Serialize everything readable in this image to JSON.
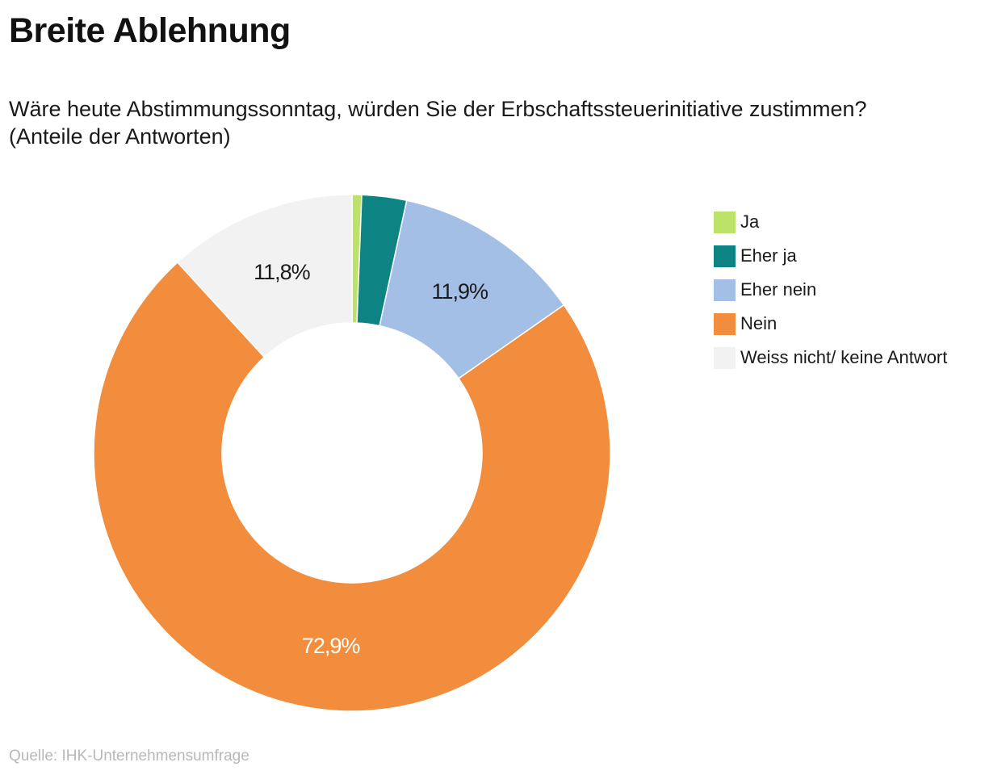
{
  "chart_data": {
    "type": "pie",
    "variant": "donut",
    "title": "Breite Ablehnung",
    "subtitle_lines": [
      "Wäre heute Abstimmungssonntag, würden Sie der Erbschaftssteuerinitiative zustimmen?",
      "(Anteile der Antworten)"
    ],
    "categories": [
      "Ja",
      "Eher ja",
      "Eher nein",
      "Nein",
      "Weiss nicht/ keine Antwort"
    ],
    "values": [
      0.6,
      2.8,
      11.9,
      72.9,
      11.8
    ],
    "data_labels": [
      "",
      "",
      "11,9%",
      "72,9%",
      "11,8%"
    ],
    "colors": [
      "#bde26a",
      "#0e8383",
      "#a3bfe6",
      "#f18d3c",
      "#f2f2f2"
    ],
    "label_colors": [
      "#1a1a1a",
      "#ffffff",
      "#1a1a1a",
      "#ffffff",
      "#1a1a1a"
    ],
    "legend_position": "right",
    "start_angle": "top",
    "direction": "clockwise",
    "source": "Quelle: IHK-Unternehmensumfrage"
  }
}
